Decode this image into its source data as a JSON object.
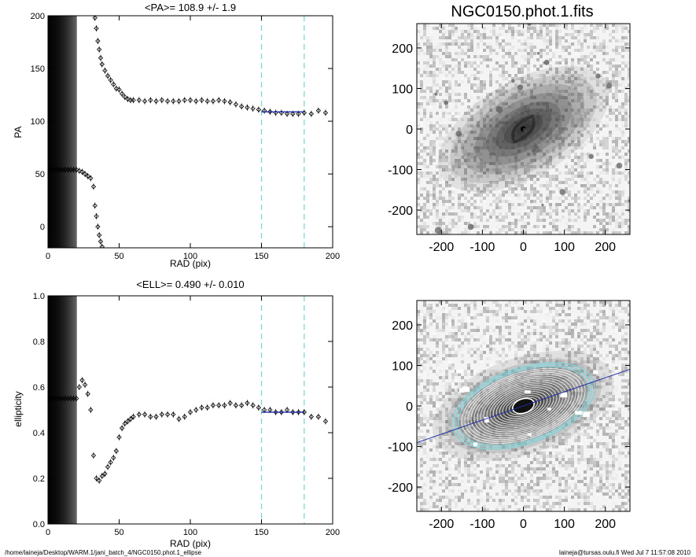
{
  "footer": {
    "path": "/home/laineja/Desktop/WARM.1/jani_batch_4/NGC0150.phot.1_ellipse",
    "user": "laineja@tursas.oulu.fi  Wed Jul  7 11:57:08 2010"
  },
  "colors": {
    "ink": "#000000",
    "fit": "#1f2aa8",
    "cyan": "#7fd4dc",
    "grid_bg": "#ffffff"
  },
  "chart_data": [
    {
      "type": "scatter",
      "title": "<PA>= 108.9 +/-   1.9",
      "xlabel": "RAD (pix)",
      "ylabel": "PA",
      "xlim": [
        0,
        200
      ],
      "ylim": [
        -20,
        200
      ],
      "xticks": [
        0,
        50,
        100,
        150,
        200
      ],
      "yticks": [
        0,
        50,
        100,
        150,
        200
      ],
      "vlines": [
        150,
        180
      ],
      "fit": {
        "x": [
          150,
          180
        ],
        "y": [
          108.9,
          108.9
        ]
      },
      "shaded_band": [
        0,
        20
      ],
      "series": [
        {
          "x": [
            0,
            2,
            4,
            6,
            8,
            10,
            12,
            14,
            16,
            18,
            20,
            22,
            24,
            26,
            28,
            30,
            32
          ],
          "y": [
            54,
            54,
            54,
            54,
            54,
            54,
            54,
            54,
            54,
            54,
            54,
            53,
            52,
            50,
            48,
            46,
            38
          ]
        },
        {
          "x": [
            33,
            34,
            35,
            36,
            37,
            38
          ],
          "y": [
            20,
            10,
            0,
            -8,
            -14,
            -19
          ]
        },
        {
          "x": [
            33,
            34,
            35,
            36,
            37,
            38,
            40,
            42,
            44,
            46,
            48,
            50,
            52,
            54,
            56,
            58,
            60,
            64,
            68,
            72,
            76,
            80,
            84,
            88,
            92,
            96,
            100,
            104,
            108,
            112,
            116,
            120,
            124,
            128,
            132,
            136,
            140,
            144,
            148,
            152,
            156,
            160,
            164,
            168,
            172,
            176,
            180,
            185,
            190,
            195
          ],
          "y": [
            198,
            188,
            176,
            168,
            160,
            154,
            148,
            143,
            139,
            135,
            131,
            130,
            126,
            123,
            121,
            120,
            120,
            120,
            119,
            120,
            119,
            120,
            119,
            119,
            119,
            120,
            120,
            119,
            120,
            119,
            119,
            120,
            119,
            118,
            116,
            114,
            113,
            112,
            111,
            110,
            109,
            108,
            108,
            107,
            107,
            107,
            108,
            107,
            110,
            108
          ]
        }
      ]
    },
    {
      "type": "scatter",
      "title": "<ELL>= 0.490 +/-  0.010",
      "xlabel": "RAD (pix)",
      "ylabel": "ellipticity",
      "xlim": [
        0,
        200
      ],
      "ylim": [
        0,
        1
      ],
      "xticks": [
        0,
        50,
        100,
        150,
        200
      ],
      "yticks": [
        0.0,
        0.2,
        0.4,
        0.6,
        0.8,
        1.0
      ],
      "vlines": [
        150,
        180
      ],
      "fit": {
        "x": [
          150,
          180
        ],
        "y": [
          0.49,
          0.49
        ]
      },
      "shaded_band": [
        0,
        20
      ],
      "series": [
        {
          "x": [
            0,
            2,
            4,
            6,
            8,
            10,
            12,
            14,
            16,
            18,
            20,
            22,
            24,
            26,
            28,
            30,
            32,
            34,
            36,
            38,
            40,
            42,
            44,
            46,
            48,
            50,
            52,
            54,
            56,
            58,
            60,
            64,
            68,
            72,
            76,
            80,
            84,
            88,
            92,
            96,
            100,
            104,
            108,
            112,
            116,
            120,
            124,
            128,
            132,
            136,
            140,
            144,
            148,
            152,
            156,
            160,
            164,
            168,
            172,
            176,
            180,
            185,
            190,
            195
          ],
          "y": [
            0.55,
            0.55,
            0.55,
            0.55,
            0.55,
            0.55,
            0.55,
            0.55,
            0.55,
            0.55,
            0.55,
            0.6,
            0.63,
            0.61,
            0.57,
            0.5,
            0.3,
            0.2,
            0.19,
            0.21,
            0.22,
            0.25,
            0.27,
            0.29,
            0.32,
            0.38,
            0.42,
            0.44,
            0.45,
            0.46,
            0.47,
            0.48,
            0.48,
            0.47,
            0.47,
            0.48,
            0.48,
            0.48,
            0.46,
            0.47,
            0.49,
            0.5,
            0.51,
            0.51,
            0.52,
            0.52,
            0.52,
            0.53,
            0.52,
            0.52,
            0.53,
            0.52,
            0.51,
            0.5,
            0.5,
            0.49,
            0.49,
            0.5,
            0.49,
            0.49,
            0.49,
            0.47,
            0.47,
            0.45
          ]
        }
      ]
    },
    {
      "type": "heatmap",
      "title": "NGC0150.phot.1.fits",
      "xlim": [
        -260,
        260
      ],
      "ylim": [
        -260,
        260
      ],
      "xticks": [
        -200,
        -100,
        0,
        100,
        200
      ],
      "yticks": [
        -200,
        -100,
        0,
        100,
        200
      ],
      "galaxy": {
        "pa_deg": 30,
        "ell": 0.49
      }
    },
    {
      "type": "heatmap",
      "title": "",
      "xlim": [
        -260,
        260
      ],
      "ylim": [
        -260,
        260
      ],
      "xticks": [
        -200,
        -100,
        0,
        100,
        200
      ],
      "yticks": [
        -200,
        -100,
        0,
        100,
        200
      ],
      "galaxy": {
        "pa_deg": 19,
        "ell": 0.49
      },
      "pa_line_deg": 19
    }
  ]
}
